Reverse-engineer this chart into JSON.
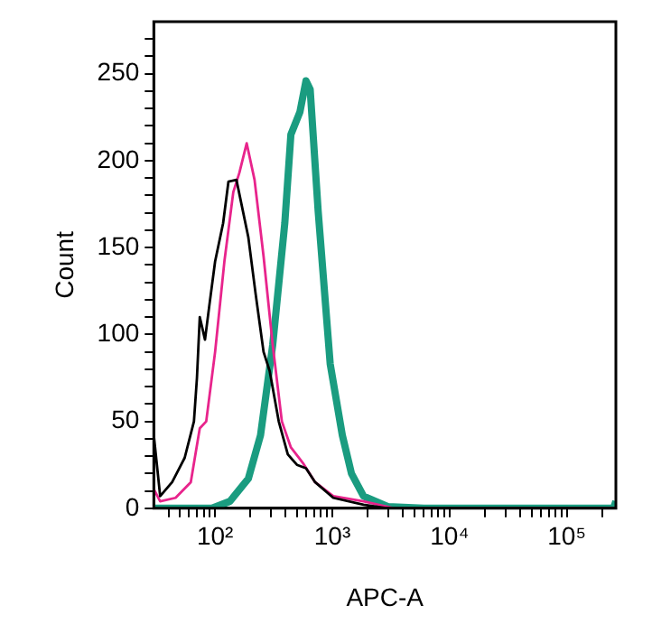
{
  "chart_data": {
    "type": "line",
    "xlabel": "APC-A",
    "ylabel": "Count",
    "log": "x",
    "grid": false,
    "legend": false,
    "marker": "none",
    "line_style": "solid",
    "xlim": [
      30,
      262144
    ],
    "ylim": [
      0,
      280
    ],
    "xticks": [
      {
        "value": 40,
        "label": null
      },
      {
        "value": 50,
        "label": null
      },
      {
        "value": 60,
        "label": null
      },
      {
        "value": 70,
        "label": null
      },
      {
        "value": 80,
        "label": null
      },
      {
        "value": 90,
        "label": null
      },
      {
        "value": 100,
        "label": "10²"
      },
      {
        "value": 200,
        "label": null
      },
      {
        "value": 300,
        "label": null
      },
      {
        "value": 400,
        "label": null
      },
      {
        "value": 500,
        "label": null
      },
      {
        "value": 600,
        "label": null
      },
      {
        "value": 700,
        "label": null
      },
      {
        "value": 800,
        "label": null
      },
      {
        "value": 900,
        "label": null
      },
      {
        "value": 1000,
        "label": "10³"
      },
      {
        "value": 2000,
        "label": null
      },
      {
        "value": 3000,
        "label": null
      },
      {
        "value": 4000,
        "label": null
      },
      {
        "value": 5000,
        "label": null
      },
      {
        "value": 6000,
        "label": null
      },
      {
        "value": 7000,
        "label": null
      },
      {
        "value": 8000,
        "label": null
      },
      {
        "value": 9000,
        "label": null
      },
      {
        "value": 10000,
        "label": "10⁴"
      },
      {
        "value": 20000,
        "label": null
      },
      {
        "value": 30000,
        "label": null
      },
      {
        "value": 40000,
        "label": null
      },
      {
        "value": 50000,
        "label": null
      },
      {
        "value": 60000,
        "label": null
      },
      {
        "value": 70000,
        "label": null
      },
      {
        "value": 80000,
        "label": null
      },
      {
        "value": 90000,
        "label": null
      },
      {
        "value": 100000,
        "label": "10⁵"
      },
      {
        "value": 200000,
        "label": null
      }
    ],
    "yticks": [
      0,
      {
        "value": 10,
        "label": null
      },
      {
        "value": 20,
        "label": null
      },
      {
        "value": 30,
        "label": null
      },
      {
        "value": 40,
        "label": null
      },
      50,
      {
        "value": 60,
        "label": null
      },
      {
        "value": 70,
        "label": null
      },
      {
        "value": 80,
        "label": null
      },
      {
        "value": 90,
        "label": null
      },
      100,
      {
        "value": 110,
        "label": null
      },
      {
        "value": 120,
        "label": null
      },
      {
        "value": 130,
        "label": null
      },
      {
        "value": 140,
        "label": null
      },
      150,
      {
        "value": 160,
        "label": null
      },
      {
        "value": 170,
        "label": null
      },
      {
        "value": 180,
        "label": null
      },
      {
        "value": 190,
        "label": null
      },
      200,
      {
        "value": 210,
        "label": null
      },
      {
        "value": 220,
        "label": null
      },
      {
        "value": 230,
        "label": null
      },
      {
        "value": 240,
        "label": null
      },
      250,
      {
        "value": 260,
        "label": null
      },
      {
        "value": 270,
        "label": null
      }
    ],
    "series": [
      {
        "color": "#000000",
        "x": [
          30,
          34,
          43,
          55,
          66,
          70,
          74,
          82,
          89,
          100,
          117,
          130,
          152,
          192,
          222,
          259,
          292,
          349,
          417,
          499,
          596,
          713,
          1019,
          1845,
          2970,
          262144
        ],
        "values": [
          42,
          7,
          15,
          29,
          50,
          75,
          110,
          97,
          116,
          142,
          164,
          188,
          189,
          156,
          123,
          90,
          79,
          50,
          31,
          25,
          23,
          15,
          6,
          2,
          0,
          0
        ]
      },
      {
        "color": "#e8248c",
        "x": [
          30,
          34,
          46,
          62,
          74,
          84,
          100,
          120,
          143,
          161,
          186,
          217,
          259,
          310,
          371,
          443,
          562,
          713,
          1019,
          1845,
          3350,
          262144
        ],
        "values": [
          11,
          4,
          6,
          15,
          46,
          50,
          90,
          142,
          182,
          193,
          210,
          189,
          145,
          94,
          50,
          35,
          26,
          15,
          7,
          4,
          0,
          0
        ]
      },
      {
        "color": "#1a9c80",
        "x": [
          30,
          94,
          134,
          192,
          244,
          310,
          393,
          443,
          529,
          596,
          647,
          757,
          959,
          1217,
          1456,
          1845,
          2970,
          6030,
          250000,
          262144
        ],
        "values": [
          0,
          0,
          4,
          17,
          42,
          94,
          164,
          215,
          228,
          246,
          241,
          171,
          83,
          42,
          20,
          7,
          1,
          0,
          0,
          4
        ]
      }
    ]
  }
}
